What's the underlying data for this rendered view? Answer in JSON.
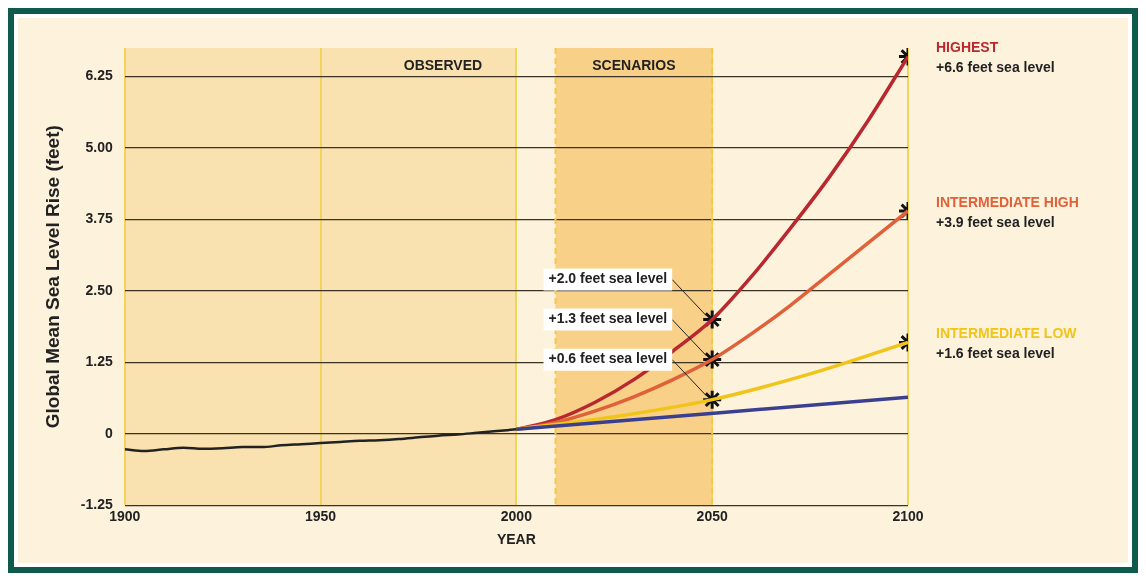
{
  "chart_data": {
    "type": "line",
    "xlabel": "YEAR",
    "ylabel": "Global Mean Sea Level Rise (feet)",
    "xlim": [
      1900,
      2100
    ],
    "xticks": [
      1900,
      1950,
      2000,
      2050,
      2100
    ],
    "ylim": [
      -1.25,
      6.75
    ],
    "yticks": [
      -1.25,
      0,
      1.25,
      {
        "value": 2.5,
        "label": "2.50"
      },
      3.75,
      {
        "value": 5,
        "label": "5.00"
      },
      6.25
    ],
    "grid": true,
    "legend": "right",
    "marker": "none",
    "bands": [
      {
        "axis": "x",
        "from": 1900,
        "to": 2000,
        "label": "OBSERVED",
        "color": "#fae2b0"
      },
      {
        "axis": "x",
        "from": 2010,
        "to": 2050,
        "label": "SCENARIOS",
        "color": "#f8d088"
      }
    ],
    "ref_lines": [
      {
        "axis": "x",
        "value": 2010,
        "color": "#f2c94c",
        "line_style": "dashed"
      },
      {
        "axis": "x",
        "value": 2050,
        "color": "#f2c94c",
        "line_style": "dashed"
      }
    ],
    "series": [
      {
        "color": "#222222",
        "x": [
          1900,
          1905,
          1910,
          1915,
          1920,
          1925,
          1930,
          1935,
          1940,
          1945,
          1950,
          1955,
          1960,
          1965,
          1970,
          1975,
          1980,
          1985,
          1990,
          1995,
          2000
        ],
        "values": [
          -0.27,
          -0.3,
          -0.27,
          -0.24,
          -0.26,
          -0.25,
          -0.23,
          -0.23,
          -0.2,
          -0.18,
          -0.16,
          -0.14,
          -0.12,
          -0.11,
          -0.09,
          -0.06,
          -0.03,
          -0.01,
          0.02,
          0.05,
          0.08
        ]
      },
      {
        "color": "#3b3f8f",
        "x": [
          2000,
          2100
        ],
        "values": [
          0.08,
          0.64
        ]
      },
      {
        "name": "INTERMEDIATE LOW",
        "color": "#f0c419",
        "x": [
          2000,
          2025,
          2050,
          2075,
          2100
        ],
        "values": [
          0.08,
          0.3,
          0.6,
          1.05,
          1.6
        ]
      },
      {
        "name": "INTERMEDIATE HIGH",
        "color": "#e0603a",
        "x": [
          2000,
          2010,
          2020,
          2030,
          2040,
          2050,
          2060,
          2070,
          2080,
          2090,
          2100
        ],
        "values": [
          0.08,
          0.2,
          0.4,
          0.65,
          0.95,
          1.3,
          1.75,
          2.25,
          2.8,
          3.35,
          3.9
        ]
      },
      {
        "name": "HIGHEST",
        "color": "#b8282e",
        "x": [
          2000,
          2010,
          2020,
          2030,
          2040,
          2050,
          2060,
          2070,
          2080,
          2090,
          2100
        ],
        "values": [
          0.08,
          0.25,
          0.55,
          0.95,
          1.45,
          2.0,
          2.75,
          3.6,
          4.5,
          5.5,
          6.6
        ]
      },
      {
        "type": "scatter",
        "marker": "cross",
        "color": "#111111",
        "x": [
          2050,
          2050,
          2050,
          2100,
          2100,
          2100
        ],
        "values": [
          2.0,
          1.3,
          0.6,
          6.6,
          3.9,
          1.6
        ],
        "value_labels": [
          "+2.0 feet sea level",
          "+1.3 feet sea level",
          "+0.6 feet sea level",
          "+6.6 feet sea level",
          "+3.9 feet sea level",
          "+1.6 feet sea level"
        ]
      }
    ]
  }
}
